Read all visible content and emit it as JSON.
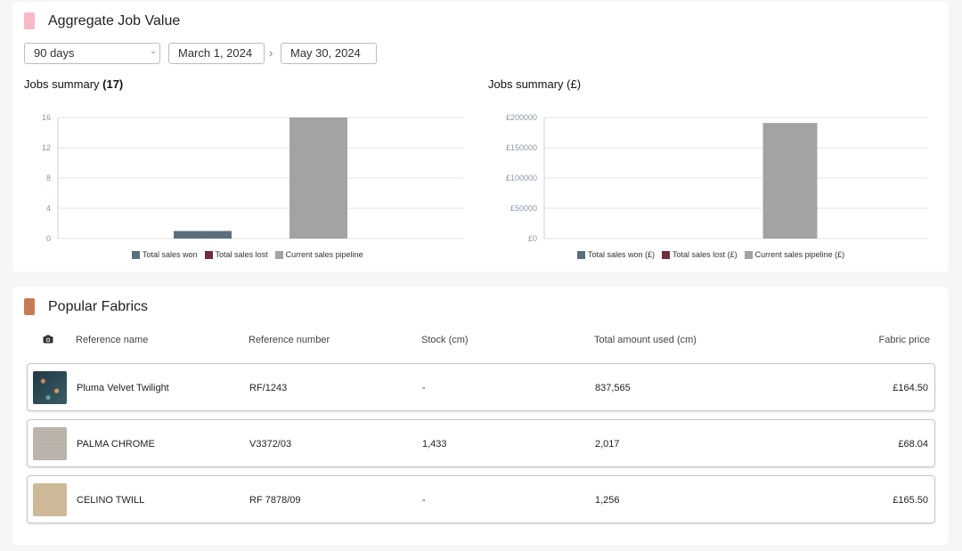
{
  "aggregate": {
    "title": "Aggregate Job Value",
    "swatch_color": "#f7b9c6",
    "range_select": "90 days",
    "start_date": "March 1, 2024",
    "end_date": "May 30, 2024",
    "arrow_glyph": "›",
    "chevron_glyph": "⌄"
  },
  "chart_data": [
    {
      "type": "bar",
      "title_prefix": "Jobs summary ",
      "title_bold": "(17)",
      "ylim": [
        0,
        16
      ],
      "yticks": [
        "0",
        "4",
        "8",
        "12",
        "16"
      ],
      "series": [
        {
          "name": "Total sales won",
          "color": "#5b6e7b",
          "value": 1
        },
        {
          "name": "Total sales lost",
          "color": "#6e2f3a",
          "value": 0
        },
        {
          "name": "Current sales pipeline",
          "color": "#a3a3a3",
          "value": 16
        }
      ],
      "grid": true,
      "legend": "bottom"
    },
    {
      "type": "bar",
      "title_prefix": "Jobs summary (£)",
      "title_bold": "",
      "ylim": [
        0,
        200000
      ],
      "yticks": [
        "£0",
        "£50000",
        "£100000",
        "£150000",
        "£200000"
      ],
      "series": [
        {
          "name": "Total sales won (£)",
          "color": "#5b6e7b",
          "value": 0
        },
        {
          "name": "Total sales lost (£)",
          "color": "#6e2f3a",
          "value": 0
        },
        {
          "name": "Current sales pipeline (£)",
          "color": "#a3a3a3",
          "value": 191000
        }
      ],
      "grid": true,
      "legend": "bottom"
    }
  ],
  "fabrics": {
    "title": "Popular Fabrics",
    "swatch_color": "#c77c55",
    "camera_icon": "camera-icon",
    "headers": {
      "name": "Reference name",
      "number": "Reference number",
      "stock": "Stock (cm)",
      "used": "Total amount used (cm)",
      "price": "Fabric price"
    },
    "rows": [
      {
        "name": "Pluma Velvet Twilight",
        "number": "RF/1243",
        "stock": "-",
        "used": "837,565",
        "price": "£164.50",
        "thumb_color": "#2f4752"
      },
      {
        "name": "PALMA CHROME",
        "number": "V3372/03",
        "stock": "1,433",
        "used": "2,017",
        "price": "£68.04",
        "thumb_color": "#b8b1a8"
      },
      {
        "name": "CELINO TWILL",
        "number": "RF 7878/09",
        "stock": "-",
        "used": "1,256",
        "price": "£165.50",
        "thumb_color": "#cdb897"
      }
    ]
  }
}
